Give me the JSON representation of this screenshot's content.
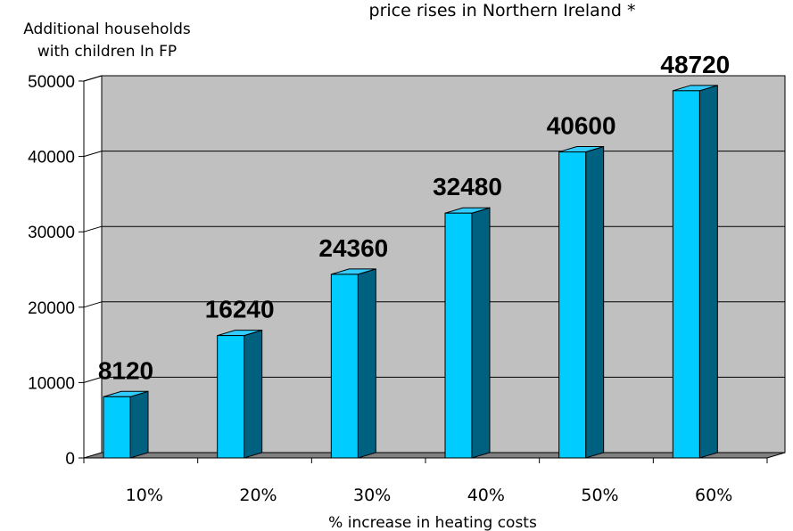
{
  "chart_data": {
    "type": "bar",
    "title": "price rises in Northern Ireland *",
    "xlabel": "% increase in heating costs",
    "ylabel_lines": [
      "Additional households",
      "with children In FP"
    ],
    "categories": [
      "10%",
      "20%",
      "30%",
      "40%",
      "50%",
      "60%"
    ],
    "values": [
      8120,
      16240,
      24360,
      32480,
      40600,
      48720
    ],
    "data_labels": [
      "8120",
      "16240",
      "24360",
      "32480",
      "40600",
      "48720"
    ],
    "y_ticks": [
      0,
      10000,
      20000,
      30000,
      40000,
      50000
    ],
    "y_tick_labels": [
      "0",
      "10000",
      "20000",
      "30000",
      "40000",
      "50000"
    ],
    "ylim": [
      0,
      50000
    ],
    "grid": true,
    "style": "3d-column",
    "colors": {
      "bar_front": "#00CCFF",
      "bar_side": "#006080",
      "bar_top": "#33CCFF",
      "wall": "#C0C0C0",
      "floor": "#808080",
      "gridline": "#000000"
    }
  }
}
